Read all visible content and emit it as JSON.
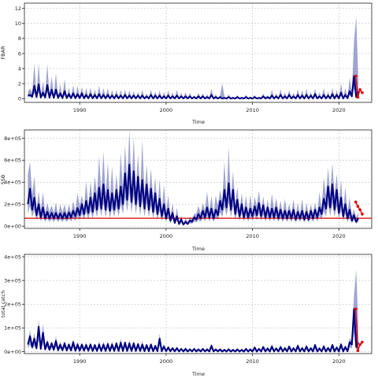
{
  "colors": {
    "band": "#9b9fd0",
    "line": "#00007f",
    "point": "#e00000",
    "refline": "#d40000",
    "grid": "#c8c8c8",
    "frame": "#222222"
  },
  "chart_data": [
    {
      "type": "line",
      "ylabel": "FBAR",
      "xlabel": "Time",
      "xlim": [
        1983.6,
        2023.8
      ],
      "ylim": [
        -0.5,
        12.7
      ],
      "xticks": [
        1990,
        2000,
        2010,
        2020
      ],
      "yticks": [
        0,
        2,
        4,
        6,
        8,
        10,
        12
      ],
      "ytick_labels": [
        "0",
        "2",
        "4",
        "6",
        "8",
        "10",
        "12"
      ],
      "grid": true,
      "seasonal_start": 1984.0,
      "seasonal_period": 0.5,
      "peaks": [
        0.5,
        1.7,
        1.9,
        0.8,
        1.8,
        1.2,
        1.2,
        0.7,
        1.0,
        0.6,
        0.7,
        0.6,
        0.7,
        0.5,
        0.6,
        0.5,
        0.6,
        0.5,
        0.5,
        0.4,
        0.5,
        0.4,
        0.5,
        0.4,
        0.4,
        0.4,
        0.4,
        0.3,
        0.5,
        0.4,
        0.4,
        0.3,
        0.4,
        0.3,
        0.4,
        0.3,
        0.3,
        0.3,
        0.2,
        0.3,
        0.3,
        0.2,
        0.5,
        0.2,
        0.2,
        0.1,
        0.2,
        0.1,
        0.2,
        0.1,
        0.2,
        0.1,
        0.2,
        0.1,
        0.3,
        0.2,
        0.4,
        0.3,
        0.5,
        0.3,
        0.5,
        0.3,
        0.5,
        0.4,
        0.5,
        0.4,
        0.6,
        0.3,
        0.5,
        0.4,
        0.6,
        0.5,
        0.8,
        0.5,
        1.0,
        3.0,
        1.0
      ],
      "troughs": [
        0.4,
        0.25,
        0.2,
        0.15,
        0.15,
        0.12,
        0.1,
        0.1,
        0.08,
        0.08,
        0.07,
        0.06,
        0.06,
        0.05,
        0.05,
        0.05,
        0.04,
        0.04,
        0.04,
        0.04,
        0.03,
        0.03,
        0.03,
        0.03,
        0.03,
        0.03,
        0.03,
        0.02,
        0.02,
        0.02,
        0.02,
        0.02,
        0.02,
        0.02,
        0.02,
        0.02,
        0.02,
        0.02,
        0.02,
        0.02,
        0.02,
        0.02,
        0.02,
        0.02,
        0.01,
        0.01,
        0.01,
        0.01,
        0.01,
        0.01,
        0.01,
        0.01,
        0.01,
        0.01,
        0.02,
        0.02,
        0.02,
        0.02,
        0.02,
        0.02,
        0.02,
        0.02,
        0.02,
        0.02,
        0.02,
        0.02,
        0.02,
        0.02,
        0.02,
        0.02,
        0.02,
        0.02,
        0.02,
        0.02,
        0.05,
        0.3,
        0.2
      ],
      "upper_factor": 2.6,
      "special_upper": [
        {
          "x": 2006.6,
          "y": 2.0
        },
        {
          "x": 2021.9,
          "y": 10.9
        }
      ],
      "forecast": [
        {
          "x": 2021.95,
          "y": 3.0
        },
        {
          "x": 2022.2,
          "y": 0.2
        },
        {
          "x": 2022.45,
          "y": 1.2
        },
        {
          "x": 2022.7,
          "y": 0.8
        }
      ]
    },
    {
      "type": "line",
      "ylabel": "SSB",
      "xlabel": "Time",
      "xlim": [
        1983.6,
        2023.8
      ],
      "ylim": [
        -20000,
        875000
      ],
      "xticks": [
        1990,
        2000,
        2010,
        2020
      ],
      "yticks": [
        0,
        200000,
        400000,
        600000,
        800000
      ],
      "ytick_labels": [
        "0e+00",
        "2e+05",
        "4e+05",
        "6e+05",
        "8e+05"
      ],
      "grid": true,
      "reference_line": 72000,
      "seasonal_start": 1984.0,
      "seasonal_period": 0.5,
      "peaks": [
        340000,
        260000,
        200000,
        170000,
        130000,
        120000,
        120000,
        115000,
        120000,
        125000,
        140000,
        165000,
        200000,
        230000,
        260000,
        300000,
        350000,
        380000,
        330000,
        300000,
        330000,
        360000,
        480000,
        560000,
        500000,
        450000,
        420000,
        380000,
        340000,
        300000,
        250000,
        200000,
        160000,
        120000,
        90000,
        60000,
        40000,
        50000,
        80000,
        110000,
        140000,
        170000,
        160000,
        150000,
        230000,
        330000,
        390000,
        330000,
        240000,
        200000,
        170000,
        160000,
        180000,
        210000,
        190000,
        170000,
        160000,
        170000,
        150000,
        140000,
        140000,
        150000,
        130000,
        140000,
        130000,
        140000,
        150000,
        170000,
        250000,
        360000,
        380000,
        330000,
        260000,
        200000,
        150000,
        100000,
        70000
      ],
      "troughs": [
        200000,
        150000,
        100000,
        80000,
        70000,
        70000,
        70000,
        70000,
        70000,
        70000,
        80000,
        90000,
        100000,
        110000,
        120000,
        130000,
        150000,
        160000,
        150000,
        140000,
        150000,
        160000,
        200000,
        240000,
        220000,
        200000,
        180000,
        160000,
        150000,
        130000,
        110000,
        90000,
        70000,
        50000,
        30000,
        20000,
        15000,
        20000,
        40000,
        60000,
        70000,
        80000,
        80000,
        70000,
        100000,
        150000,
        170000,
        150000,
        110000,
        90000,
        80000,
        80000,
        90000,
        100000,
        90000,
        80000,
        80000,
        80000,
        70000,
        70000,
        70000,
        70000,
        60000,
        70000,
        60000,
        60000,
        70000,
        80000,
        110000,
        160000,
        170000,
        150000,
        120000,
        90000,
        70000,
        50000,
        40000
      ],
      "upper_factor": 1.65,
      "lower_factor": 0.55,
      "special_upper": [
        {
          "x": 1984.0,
          "y": 470000
        }
      ],
      "forecast": [
        {
          "x": 2021.95,
          "y": 220000
        },
        {
          "x": 2022.2,
          "y": 180000
        },
        {
          "x": 2022.45,
          "y": 150000
        },
        {
          "x": 2022.7,
          "y": 110000
        }
      ]
    },
    {
      "type": "line",
      "ylabel": "total catch",
      "xlabel": "Time",
      "xlim": [
        1983.6,
        2023.8
      ],
      "ylim": [
        -8000,
        410000
      ],
      "xticks": [
        1990,
        2000,
        2010,
        2020
      ],
      "yticks": [
        0,
        100000,
        200000,
        300000,
        400000
      ],
      "ytick_labels": [
        "0e+00",
        "1e+05",
        "2e+05",
        "3e+05",
        "4e+05"
      ],
      "grid": true,
      "seasonal_start": 1984.0,
      "seasonal_period": 0.5,
      "peaks": [
        65000,
        55000,
        105000,
        80000,
        40000,
        35000,
        45000,
        30000,
        35000,
        30000,
        40000,
        30000,
        30000,
        28000,
        30000,
        28000,
        30000,
        30000,
        32000,
        30000,
        35000,
        38000,
        38000,
        35000,
        35000,
        32000,
        30000,
        28000,
        30000,
        25000,
        55000,
        22000,
        18000,
        15000,
        15000,
        12000,
        12000,
        10000,
        12000,
        10000,
        12000,
        10000,
        25000,
        10000,
        10000,
        8000,
        10000,
        8000,
        10000,
        8000,
        12000,
        10000,
        18000,
        12000,
        20000,
        14000,
        22000,
        14000,
        20000,
        15000,
        22000,
        15000,
        25000,
        15000,
        22000,
        15000,
        28000,
        14000,
        22000,
        16000,
        28000,
        18000,
        30000,
        20000,
        40000,
        180000,
        40000
      ],
      "troughs": [
        30000,
        20000,
        15000,
        12000,
        10000,
        8000,
        8000,
        6000,
        6000,
        5000,
        5000,
        4000,
        4000,
        4000,
        4000,
        3000,
        3000,
        3000,
        3000,
        3000,
        3000,
        3000,
        3000,
        3000,
        3000,
        3000,
        3000,
        2000,
        2000,
        2000,
        2000,
        2000,
        2000,
        1500,
        1500,
        1000,
        1000,
        1000,
        1000,
        1000,
        1000,
        1000,
        1000,
        1000,
        800,
        600,
        600,
        600,
        600,
        600,
        600,
        600,
        600,
        600,
        800,
        800,
        800,
        800,
        800,
        800,
        800,
        800,
        800,
        800,
        800,
        800,
        800,
        800,
        800,
        800,
        800,
        800,
        800,
        800,
        2000,
        30000,
        20000
      ],
      "upper_factor": 1.35,
      "special_upper": [
        {
          "x": 2021.9,
          "y": 345000
        },
        {
          "x": 2022.7,
          "y": 110000
        }
      ],
      "forecast": [
        {
          "x": 2021.95,
          "y": 180000
        },
        {
          "x": 2022.2,
          "y": 5000
        },
        {
          "x": 2022.45,
          "y": 30000
        },
        {
          "x": 2022.7,
          "y": 40000
        }
      ]
    }
  ]
}
